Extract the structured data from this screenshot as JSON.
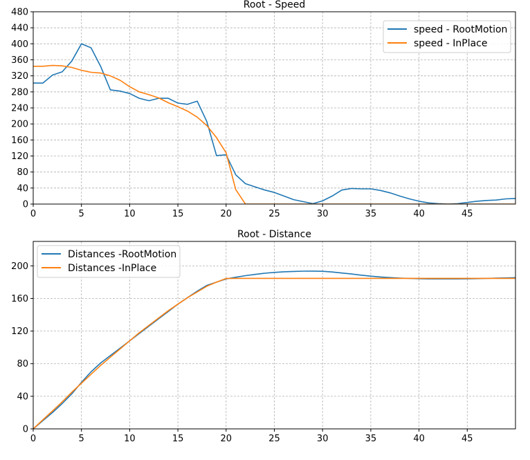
{
  "chart_data": [
    {
      "type": "line",
      "title": "Root - Speed",
      "xlabel": "",
      "ylabel": "",
      "xlim": [
        0,
        50
      ],
      "ylim": [
        0,
        480
      ],
      "xticks": [
        0,
        5,
        10,
        15,
        20,
        25,
        30,
        35,
        40,
        45
      ],
      "yticks": [
        0,
        40,
        80,
        120,
        160,
        200,
        240,
        280,
        320,
        360,
        400,
        440,
        480
      ],
      "grid": true,
      "legend_position": "top-right",
      "series": [
        {
          "name": "speed - RootMotion",
          "color": "#1f77b4",
          "x": [
            0,
            1,
            2,
            3,
            4,
            5,
            6,
            7,
            8,
            9,
            10,
            11,
            12,
            13,
            14,
            15,
            16,
            17,
            18,
            19,
            20,
            21,
            22,
            23,
            24,
            25,
            26,
            27,
            28,
            29,
            30,
            31,
            32,
            33,
            34,
            35,
            36,
            37,
            38,
            39,
            40,
            41,
            42,
            43,
            44,
            45,
            46,
            47,
            48,
            49,
            50
          ],
          "y": [
            302,
            302,
            322,
            330,
            357,
            400,
            390,
            343,
            285,
            282,
            276,
            264,
            258,
            264,
            264,
            252,
            249,
            257,
            206,
            121,
            123,
            73,
            51,
            43,
            35,
            29,
            20,
            11,
            6,
            1,
            8,
            20,
            35,
            39,
            38,
            38,
            34,
            28,
            20,
            13,
            7,
            3,
            1,
            0,
            1,
            4,
            7,
            9,
            10,
            13,
            14
          ]
        },
        {
          "name": "speed - InPlace",
          "color": "#ff7f0e",
          "x": [
            0,
            1,
            2,
            3,
            4,
            5,
            6,
            7,
            8,
            9,
            10,
            11,
            12,
            13,
            14,
            15,
            16,
            17,
            18,
            19,
            20,
            21,
            22,
            23,
            24,
            25,
            26,
            27,
            28,
            29,
            30,
            31,
            32,
            33,
            34,
            35,
            36,
            37,
            38,
            39,
            40,
            41,
            42,
            43,
            44,
            45,
            46,
            47,
            48,
            49,
            50
          ],
          "y": [
            344,
            344,
            346,
            345,
            341,
            334,
            329,
            327,
            320,
            309,
            293,
            280,
            273,
            265,
            253,
            243,
            232,
            217,
            196,
            166,
            128,
            36,
            0,
            0,
            0,
            0,
            0,
            0,
            0,
            0,
            0,
            0,
            0,
            0,
            0,
            0,
            0,
            0,
            0,
            0,
            0,
            0,
            0,
            0,
            0,
            0,
            0,
            0,
            0,
            0,
            0
          ]
        }
      ]
    },
    {
      "type": "line",
      "title": "Root - Distance",
      "xlabel": "",
      "ylabel": "",
      "xlim": [
        0,
        50
      ],
      "ylim": [
        0,
        230
      ],
      "xticks": [
        0,
        5,
        10,
        15,
        20,
        25,
        30,
        35,
        40,
        45
      ],
      "yticks": [
        0,
        40,
        80,
        120,
        160,
        200
      ],
      "grid": true,
      "legend_position": "top-left",
      "series": [
        {
          "name": "Distances -RootMotion",
          "color": "#1f77b4",
          "x": [
            0,
            1,
            2,
            3,
            4,
            5,
            6,
            7,
            8,
            9,
            10,
            11,
            12,
            13,
            14,
            15,
            16,
            17,
            18,
            19,
            20,
            21,
            22,
            23,
            24,
            25,
            26,
            27,
            28,
            29,
            30,
            31,
            32,
            33,
            34,
            35,
            36,
            37,
            38,
            39,
            40,
            41,
            42,
            43,
            44,
            45,
            46,
            47,
            48,
            49,
            50
          ],
          "y": [
            0,
            10,
            20,
            31,
            43,
            57,
            70,
            81,
            90,
            99,
            108,
            117,
            126,
            135,
            144,
            153,
            161,
            169,
            176,
            180,
            184,
            186,
            188,
            189.5,
            191,
            192,
            192.7,
            193.2,
            193.5,
            193.6,
            193.3,
            192.5,
            191.2,
            190,
            188.6,
            187.4,
            186.4,
            185.6,
            185,
            184.6,
            184.2,
            184,
            184,
            184,
            184,
            184.1,
            184.3,
            184.6,
            184.9,
            185.2,
            185.5
          ]
        },
        {
          "name": "Distances -InPlace",
          "color": "#ff7f0e",
          "x": [
            0,
            1,
            2,
            3,
            4,
            5,
            6,
            7,
            8,
            9,
            10,
            11,
            12,
            13,
            14,
            15,
            16,
            17,
            18,
            19,
            20,
            21,
            22,
            23,
            24,
            25,
            26,
            27,
            28,
            29,
            30,
            31,
            32,
            33,
            34,
            35,
            36,
            37,
            38,
            39,
            40,
            41,
            42,
            43,
            44,
            45,
            46,
            47,
            48,
            49,
            50
          ],
          "y": [
            0,
            11,
            22,
            33,
            45,
            56,
            67,
            78,
            88,
            98,
            108,
            118,
            127,
            136,
            145,
            153,
            161,
            168,
            175,
            180,
            184.5,
            184.7,
            184.7,
            184.7,
            184.7,
            184.7,
            184.7,
            184.7,
            184.7,
            184.7,
            184.7,
            184.7,
            184.7,
            184.7,
            184.7,
            184.7,
            184.7,
            184.7,
            184.7,
            184.7,
            184.7,
            184.7,
            184.7,
            184.7,
            184.7,
            184.7,
            184.7,
            184.7,
            184.7,
            184.7,
            184.7
          ]
        }
      ]
    }
  ]
}
